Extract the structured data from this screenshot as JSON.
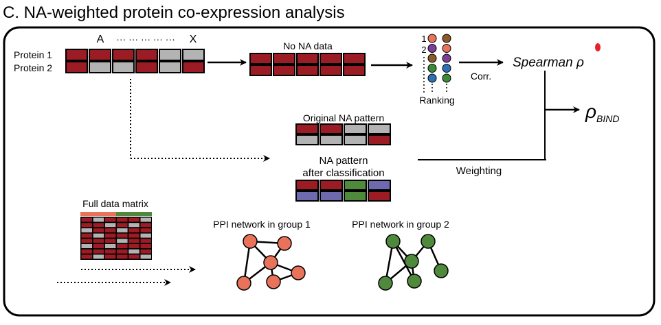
{
  "panel": {
    "title": "C. NA-weighted protein co-expression analysis"
  },
  "top_matrix": {
    "row_labels": [
      "Protein 1",
      "Protein 2"
    ],
    "col_start": "A",
    "col_dots": "··· ··· ··· ··· ···",
    "col_end": "X",
    "rows": [
      [
        "na_present",
        "na_present",
        "na_present",
        "na_present",
        "na_missing",
        "na_missing"
      ],
      [
        "na_present",
        "na_missing",
        "na_missing",
        "na_present",
        "na_missing",
        "na_present"
      ]
    ]
  },
  "no_na": {
    "label": "No NA data",
    "rows": [
      [
        "na_present",
        "na_present",
        "na_present",
        "na_present",
        "na_present"
      ],
      [
        "na_present",
        "na_present",
        "na_present",
        "na_present",
        "na_present"
      ]
    ]
  },
  "ranking": {
    "index_1": "1",
    "index_2": "2",
    "label": "Ranking",
    "col1": [
      "orange",
      "purple",
      "brown",
      "green",
      "blue"
    ],
    "col2": [
      "brown",
      "orange",
      "purple",
      "blue",
      "green"
    ]
  },
  "correlation": {
    "corr_label": "Corr.",
    "spearman_label": "Spearman ρ",
    "output_rho": "ρ",
    "output_sub": "BIND",
    "weighting_label": "Weighting"
  },
  "original_na": {
    "label": "Original NA pattern",
    "rows": [
      [
        "na_present",
        "na_present",
        "na_missing",
        "na_missing"
      ],
      [
        "na_missing",
        "na_missing",
        "na_missing",
        "na_present"
      ]
    ]
  },
  "classified_na": {
    "label_line1": "NA pattern",
    "label_line2": "after classification",
    "rows": [
      [
        "na_present",
        "na_present",
        "class_green",
        "class_purple"
      ],
      [
        "class_purple",
        "class_purple",
        "class_green",
        "na_present"
      ]
    ]
  },
  "full_matrix": {
    "label": "Full data matrix",
    "group1_color": "#e8735a",
    "group2_color": "#4f8a3c"
  },
  "networks": {
    "group1": {
      "label": "PPI network in group 1",
      "color": "#e8735a"
    },
    "group2": {
      "label": "PPI network in group 2",
      "color": "#4f8a3c"
    }
  },
  "colors": {
    "na_present": "#9b1c24",
    "na_missing": "#b3b3b3",
    "class_green": "#4f8a3c",
    "class_purple": "#6f6aad",
    "orange": "#e8735a",
    "purple": "#7b3f98",
    "brown": "#8b5a2b",
    "green": "#3b8a3a",
    "blue": "#2f6fb5",
    "red_dot": "#e8202a"
  }
}
